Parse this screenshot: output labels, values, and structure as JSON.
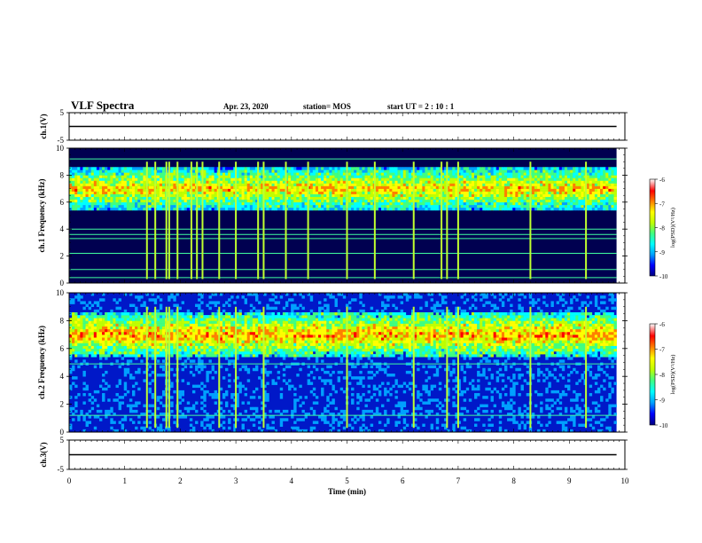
{
  "header": {
    "title": "VLF Spectra",
    "date": "Apr. 23, 2020",
    "station": "station= MOS",
    "start": "start UT =  2 : 10 : 1"
  },
  "chart_data": [
    {
      "type": "line",
      "panel": "ch1-waveform",
      "ylabel": "ch.1(V)",
      "ylim": [
        -5,
        5
      ],
      "yticks": [
        "5",
        "-5"
      ],
      "xlim": [
        0,
        10
      ],
      "series": [
        {
          "x": [
            0,
            9.85
          ],
          "values": [
            0,
            0
          ]
        }
      ],
      "grid": false
    },
    {
      "type": "heatmap",
      "panel": "ch1-spectrogram",
      "ylabel": "ch.1 Frequency (kHz)",
      "ylim": [
        0,
        10
      ],
      "yticks": [
        "0",
        "2",
        "4",
        "6",
        "8",
        "10"
      ],
      "xlim": [
        0,
        10
      ],
      "data_extent_x": [
        0,
        9.85
      ],
      "colorbar": {
        "label": "log(PSD)(V²/Hz)",
        "ticks": [
          "-6",
          "-7",
          "-8",
          "-9",
          "-10"
        ],
        "range": [
          -10,
          -6
        ]
      },
      "bands": [
        {
          "f_low": 5.5,
          "f_high": 8.5,
          "level": -7.8
        },
        {
          "f_low": 9.6,
          "f_high": 10,
          "level": -10
        }
      ],
      "horizontal_lines_khz": [
        0.4,
        1.0,
        2.2,
        3.3,
        3.6,
        4.0,
        9.2
      ],
      "impulses_min": [
        1.4,
        1.55,
        1.75,
        1.8,
        1.95,
        2.2,
        2.3,
        2.4,
        2.7,
        3.0,
        3.4,
        3.5,
        3.9,
        4.3,
        5.0,
        5.5,
        6.2,
        6.7,
        6.8,
        7.0,
        8.3,
        9.3
      ],
      "grid": false
    },
    {
      "type": "heatmap",
      "panel": "ch2-spectrogram",
      "ylabel": "ch.2 Frequency (kHz)",
      "ylim": [
        0,
        10
      ],
      "yticks": [
        "0",
        "2",
        "4",
        "6",
        "8",
        "10"
      ],
      "xlim": [
        0,
        10
      ],
      "data_extent_x": [
        0,
        9.85
      ],
      "colorbar": {
        "label": "log(PSD)(V²/Hz)",
        "ticks": [
          "-6",
          "-7",
          "-8",
          "-9",
          "-10"
        ],
        "range": [
          -10,
          -6
        ]
      },
      "bands": [
        {
          "f_low": 5.5,
          "f_high": 8.5,
          "level": -7.6
        }
      ],
      "horizontal_lines_khz": [
        1.2,
        4.9
      ],
      "impulses_min": [
        1.4,
        1.55,
        1.75,
        1.8,
        1.95,
        2.7,
        3.0,
        3.5,
        5.0,
        6.2,
        6.8,
        7.0,
        8.3,
        9.3
      ],
      "grid": false
    },
    {
      "type": "line",
      "panel": "ch3-waveform",
      "ylabel": "ch.3(V)",
      "ylim": [
        -5,
        5
      ],
      "yticks": [
        "5",
        "-5"
      ],
      "xlim": [
        0,
        10
      ],
      "xticks": [
        "0",
        "1",
        "2",
        "3",
        "4",
        "5",
        "6",
        "7",
        "8",
        "9",
        "10"
      ],
      "xlabel": "Time (min)",
      "series": [
        {
          "x": [
            0,
            9.85
          ],
          "values": [
            0,
            0
          ]
        }
      ],
      "grid": false
    }
  ],
  "colors": {
    "colormap": [
      "#000080",
      "#0000ff",
      "#00a0ff",
      "#00ffff",
      "#40ff80",
      "#c0ff00",
      "#ffff00",
      "#ff8000",
      "#ff0000",
      "#ffffff"
    ],
    "background": "#ffffff",
    "axis": "#000000"
  }
}
